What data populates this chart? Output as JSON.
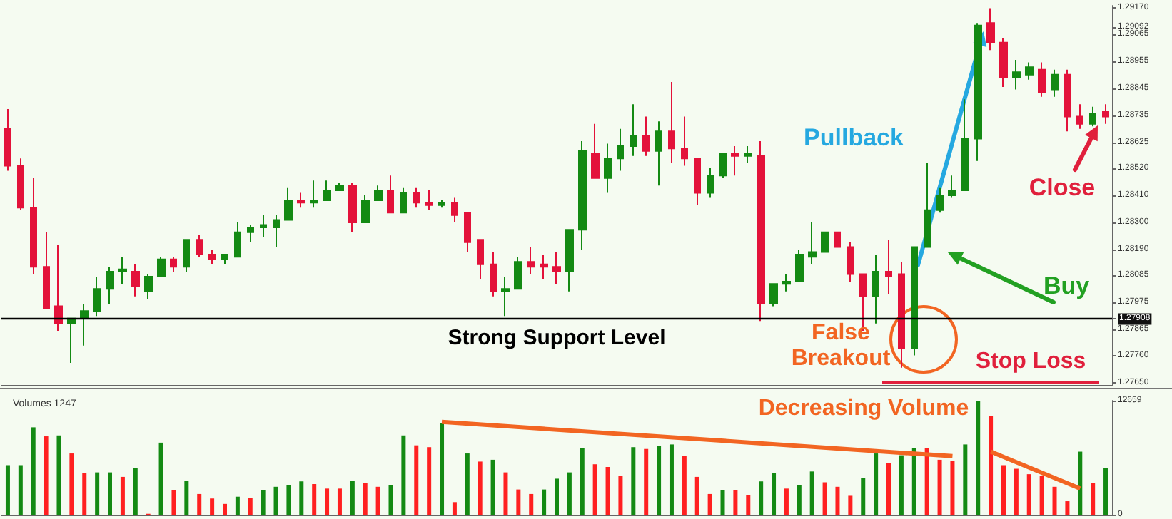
{
  "chart_data": [
    {
      "type": "candlestick",
      "categories": [
        null,
        null,
        null,
        null,
        null,
        null,
        null,
        null,
        null,
        null,
        null,
        null,
        null,
        null,
        null,
        null,
        null,
        null,
        null,
        null,
        null,
        null,
        null,
        null,
        null,
        null,
        null,
        null,
        null,
        null,
        null,
        null,
        null,
        null,
        null,
        null,
        null,
        null,
        null,
        null,
        null,
        null,
        null,
        null,
        null,
        null,
        null,
        null,
        null,
        null,
        null,
        null,
        null,
        null,
        null,
        null,
        null,
        null,
        null,
        null,
        null,
        null,
        null,
        null,
        null,
        null,
        null,
        null,
        null,
        null,
        null,
        null,
        null,
        null,
        null,
        null,
        null,
        null,
        null,
        null,
        null,
        null,
        null,
        null,
        null,
        null,
        null
      ],
      "ohlc": [
        [
          1.2868,
          1.2876,
          1.2851,
          1.2853
        ],
        [
          1.2853,
          1.2856,
          1.2835,
          1.2836
        ],
        [
          1.2836,
          1.2848,
          1.2809,
          1.2812
        ],
        [
          1.2812,
          1.2826,
          1.2795,
          1.2795
        ],
        [
          1.2796,
          1.2821,
          1.2786,
          1.2789
        ],
        [
          1.2789,
          1.2791,
          1.2773,
          1.2791
        ],
        [
          1.2791,
          1.2797,
          1.278,
          1.2794
        ],
        [
          1.2794,
          1.2808,
          1.2792,
          1.2803
        ],
        [
          1.2803,
          1.2812,
          1.2797,
          1.281
        ],
        [
          1.281,
          1.2816,
          1.2805,
          1.2811
        ],
        [
          1.281,
          1.2813,
          1.28,
          1.2804
        ],
        [
          1.2802,
          1.2809,
          1.2799,
          1.2808
        ],
        [
          1.2808,
          1.2816,
          1.2808,
          1.2815
        ],
        [
          1.2815,
          1.2816,
          1.281,
          1.2812
        ],
        [
          1.2812,
          1.2823,
          1.281,
          1.2823
        ],
        [
          1.2823,
          1.2825,
          1.2816,
          1.2817
        ],
        [
          1.2817,
          1.2819,
          1.2813,
          1.2815
        ],
        [
          1.2815,
          1.2817,
          1.2813,
          1.2817
        ],
        [
          1.2816,
          1.283,
          1.2816,
          1.2826
        ],
        [
          1.2826,
          1.2829,
          1.2822,
          1.2828
        ],
        [
          1.2828,
          1.2833,
          1.2824,
          1.2829
        ],
        [
          1.2828,
          1.2833,
          1.282,
          1.2831
        ],
        [
          1.2831,
          1.2844,
          1.2831,
          1.2839
        ],
        [
          1.2839,
          1.2842,
          1.2836,
          1.2838
        ],
        [
          1.2838,
          1.2847,
          1.2836,
          1.2839
        ],
        [
          1.2839,
          1.2847,
          1.2839,
          1.2843
        ],
        [
          1.2843,
          1.2846,
          1.2843,
          1.2845
        ],
        [
          1.2845,
          1.2846,
          1.2826,
          1.283
        ],
        [
          1.283,
          1.2841,
          1.283,
          1.2839
        ],
        [
          1.2839,
          1.2845,
          1.2839,
          1.2843
        ],
        [
          1.2843,
          1.2849,
          1.2834,
          1.2834
        ],
        [
          1.2834,
          1.2844,
          1.2834,
          1.2842
        ],
        [
          1.2842,
          1.2844,
          1.2836,
          1.2838
        ],
        [
          1.2838,
          1.2843,
          1.2835,
          1.2837
        ],
        [
          1.2837,
          1.2839,
          1.2836,
          1.2838
        ],
        [
          1.2838,
          1.284,
          1.283,
          1.2833
        ],
        [
          1.2834,
          1.2834,
          1.2818,
          1.2822
        ],
        [
          1.2823,
          1.2823,
          1.2807,
          1.2813
        ],
        [
          1.2813,
          1.2818,
          1.28,
          1.2802
        ],
        [
          1.2802,
          1.2808,
          1.2792,
          1.2803
        ],
        [
          1.2803,
          1.2816,
          1.2803,
          1.2814
        ],
        [
          1.2814,
          1.282,
          1.2809,
          1.2812
        ],
        [
          1.2813,
          1.2817,
          1.2807,
          1.2812
        ],
        [
          1.2812,
          1.2818,
          1.2805,
          1.281
        ],
        [
          1.281,
          1.2827,
          1.2802,
          1.2827
        ],
        [
          1.2827,
          1.2863,
          1.2819,
          1.2859
        ],
        [
          1.2858,
          1.287,
          1.2848,
          1.2848
        ],
        [
          1.2848,
          1.2862,
          1.2842,
          1.2856
        ],
        [
          1.2856,
          1.2868,
          1.2851,
          1.2861
        ],
        [
          1.2861,
          1.2878,
          1.2857,
          1.2865
        ],
        [
          1.2865,
          1.2873,
          1.2857,
          1.2859
        ],
        [
          1.2859,
          1.2871,
          1.2845,
          1.2867
        ],
        [
          1.2867,
          1.2887,
          1.2854,
          1.286
        ],
        [
          1.286,
          1.2873,
          1.2853,
          1.2856
        ],
        [
          1.2856,
          1.2856,
          1.2837,
          1.2842
        ],
        [
          1.2842,
          1.2852,
          1.284,
          1.2849
        ],
        [
          1.2849,
          1.2858,
          1.2848,
          1.2858
        ],
        [
          1.2858,
          1.2861,
          1.2849,
          1.2857
        ],
        [
          1.2857,
          1.2861,
          1.2854,
          1.2858
        ],
        [
          1.2857,
          1.2863,
          1.279,
          1.2797
        ],
        [
          1.2797,
          1.2805,
          1.2796,
          1.2805
        ],
        [
          1.2805,
          1.2809,
          1.2802,
          1.2806
        ],
        [
          1.2806,
          1.2819,
          1.2806,
          1.2817
        ],
        [
          1.2816,
          1.283,
          1.2813,
          1.2818
        ],
        [
          1.2818,
          1.2826,
          1.2818,
          1.2826
        ],
        [
          1.2826,
          1.2826,
          1.282,
          1.282
        ],
        [
          1.282,
          1.2822,
          1.2806,
          1.2809
        ],
        [
          1.2809,
          1.2809,
          1.2786,
          1.28
        ],
        [
          1.28,
          1.2817,
          1.2789,
          1.281
        ],
        [
          1.281,
          1.2823,
          1.2801,
          1.2808
        ],
        [
          1.2809,
          1.2814,
          1.2771,
          1.2779
        ],
        [
          1.2779,
          1.282,
          1.2776,
          1.282
        ],
        [
          1.282,
          1.2854,
          1.282,
          1.2835
        ],
        [
          1.2835,
          1.2844,
          1.2834,
          1.2841
        ],
        [
          1.2841,
          1.2849,
          1.284,
          1.2843
        ],
        [
          1.2843,
          1.288,
          1.2843,
          1.2864
        ],
        [
          1.2864,
          1.2911,
          1.2855,
          1.291
        ],
        [
          1.2911,
          1.2917,
          1.29,
          1.2903
        ],
        [
          1.2903,
          1.2905,
          1.2885,
          1.2889
        ],
        [
          1.2889,
          1.2896,
          1.2884,
          1.2891
        ],
        [
          1.289,
          1.2895,
          1.2888,
          1.2893
        ],
        [
          1.2892,
          1.2895,
          1.2881,
          1.2883
        ],
        [
          1.2884,
          1.2892,
          1.2881,
          1.289
        ],
        [
          1.289,
          1.2892,
          1.2867,
          1.2873
        ],
        [
          1.2873,
          1.2878,
          1.2868,
          1.287
        ],
        [
          1.287,
          1.2877,
          1.2869,
          1.2874
        ],
        [
          1.2875,
          1.2878,
          1.287,
          1.2873
        ]
      ],
      "ylim": [
        1.2764,
        1.2918
      ],
      "yticks": [
        {
          "value": 1.2917,
          "label": "1.29170"
        },
        {
          "value": 1.29092,
          "label": "1.29092"
        },
        {
          "value": 1.29065,
          "label": "1.29065"
        },
        {
          "value": 1.28955,
          "label": "1.28955"
        },
        {
          "value": 1.28845,
          "label": "1.28845"
        },
        {
          "value": 1.28735,
          "label": "1.28735"
        },
        {
          "value": 1.28625,
          "label": "1.28625"
        },
        {
          "value": 1.2852,
          "label": "1.28520"
        },
        {
          "value": 1.2841,
          "label": "1.28410"
        },
        {
          "value": 1.283,
          "label": "1.28300"
        },
        {
          "value": 1.2819,
          "label": "1.28190"
        },
        {
          "value": 1.28085,
          "label": "1.28085"
        },
        {
          "value": 1.27975,
          "label": "1.27975"
        },
        {
          "value": 1.27908,
          "label": "1.27908"
        },
        {
          "value": 1.27865,
          "label": "1.27865"
        },
        {
          "value": 1.2776,
          "label": "1.27760"
        },
        {
          "value": 1.2765,
          "label": "1.27650"
        }
      ],
      "ref_lines": [
        {
          "axis": "y",
          "value": 1.27908,
          "label": "Strong Support Level",
          "color": "#000000"
        }
      ],
      "annotations": [
        "Pullback",
        "Buy",
        "Close",
        "False Breakout",
        "Stop Loss"
      ],
      "tick_labels": "y",
      "grid": false
    },
    {
      "type": "bar",
      "title": "Volumes 1247",
      "categories": [
        null,
        null,
        null,
        null,
        null,
        null,
        null,
        null,
        null,
        null,
        null,
        null,
        null,
        null,
        null,
        null,
        null,
        null,
        null,
        null,
        null,
        null,
        null,
        null,
        null,
        null,
        null,
        null,
        null,
        null,
        null,
        null,
        null,
        null,
        null,
        null,
        null,
        null,
        null,
        null,
        null,
        null,
        null,
        null,
        null,
        null,
        null,
        null,
        null,
        null,
        null,
        null,
        null,
        null,
        null,
        null,
        null,
        null,
        null,
        null,
        null,
        null,
        null,
        null,
        null,
        null,
        null,
        null,
        null,
        null,
        null,
        null,
        null,
        null,
        null,
        null,
        null,
        null,
        null,
        null,
        null,
        null,
        null,
        null,
        null,
        null,
        null
      ],
      "series": [
        {
          "values": [
            5500,
            5500,
            9700,
            8700,
            8800,
            6800,
            4600,
            4700,
            4700,
            4200,
            5200,
            100,
            8000,
            2700,
            3800,
            2300,
            1800,
            1200,
            2000,
            1900,
            2700,
            3100,
            3300,
            3700,
            3400,
            2900,
            2900,
            3800,
            3500,
            3100,
            3300,
            8800,
            7700,
            7500,
            10200,
            1400,
            6800,
            5900,
            6100,
            4700,
            2800,
            2300,
            2800,
            4000,
            4700,
            7400,
            5600,
            5300,
            4300,
            7500,
            7300,
            7600,
            7800,
            6500,
            4200,
            2300,
            2700,
            2700,
            2200,
            3700,
            4600,
            2900,
            3300,
            4800,
            3600,
            3100,
            2100,
            4100,
            6800,
            5700,
            6600,
            7400,
            7400,
            6100,
            6000,
            7800,
            12659,
            11000,
            5500,
            5100,
            4500,
            4300,
            3100,
            1500,
            7000,
            3500,
            5200
          ],
          "colors": [
            "#138a13",
            "#138a13",
            "#138a13",
            "#ff2020",
            "#138a13",
            "#ff2020",
            "#ff2020",
            "#138a13",
            "#138a13",
            "#ff2020",
            "#138a13",
            "#ff2020",
            "#138a13",
            "#ff2020",
            "#138a13",
            "#ff2020",
            "#ff2020",
            "#ff2020",
            "#138a13",
            "#ff2020",
            "#138a13",
            "#138a13",
            "#138a13",
            "#138a13",
            "#ff2020",
            "#ff2020",
            "#ff2020",
            "#138a13",
            "#ff2020",
            "#ff2020",
            "#138a13",
            "#138a13",
            "#ff2020",
            "#ff2020",
            "#138a13",
            "#ff2020",
            "#138a13",
            "#ff2020",
            "#138a13",
            "#ff2020",
            "#ff2020",
            "#ff2020",
            "#138a13",
            "#138a13",
            "#138a13",
            "#138a13",
            "#ff2020",
            "#ff2020",
            "#ff2020",
            "#138a13",
            "#ff2020",
            "#138a13",
            "#138a13",
            "#ff2020",
            "#ff2020",
            "#ff2020",
            "#138a13",
            "#ff2020",
            "#ff2020",
            "#138a13",
            "#138a13",
            "#ff2020",
            "#138a13",
            "#138a13",
            "#ff2020",
            "#ff2020",
            "#ff2020",
            "#138a13",
            "#138a13",
            "#ff2020",
            "#138a13",
            "#138a13",
            "#ff2020",
            "#ff2020",
            "#ff2020",
            "#138a13",
            "#138a13",
            "#ff2020",
            "#ff2020",
            "#ff2020",
            "#ff2020",
            "#ff2020",
            "#ff2020",
            "#ff2020",
            "#138a13",
            "#ff2020",
            "#138a13"
          ]
        },
        {
          "type": "line",
          "color": "#f26522",
          "values": [
            null,
            null,
            null,
            null,
            null,
            null,
            null,
            null,
            null,
            null,
            null,
            null,
            null,
            null,
            null,
            null,
            null,
            null,
            null,
            null,
            null,
            null,
            null,
            null,
            null,
            null,
            null,
            null,
            null,
            null,
            null,
            null,
            null,
            null,
            10300,
            null,
            null,
            null,
            null,
            null,
            null,
            null,
            null,
            null,
            null,
            null,
            null,
            null,
            null,
            null,
            null,
            null,
            null,
            null,
            null,
            null,
            null,
            null,
            null,
            null,
            null,
            null,
            null,
            null,
            null,
            null,
            null,
            null,
            null,
            null,
            null,
            null,
            null,
            null,
            6500,
            null,
            null,
            null,
            null,
            null,
            null,
            null,
            null,
            null,
            null,
            null,
            null
          ]
        },
        {
          "type": "line",
          "color": "#f26522",
          "values": [
            null,
            null,
            null,
            null,
            null,
            null,
            null,
            null,
            null,
            null,
            null,
            null,
            null,
            null,
            null,
            null,
            null,
            null,
            null,
            null,
            null,
            null,
            null,
            null,
            null,
            null,
            null,
            null,
            null,
            null,
            null,
            null,
            null,
            null,
            null,
            null,
            null,
            null,
            null,
            null,
            null,
            null,
            null,
            null,
            null,
            null,
            null,
            null,
            null,
            null,
            null,
            null,
            null,
            null,
            null,
            null,
            null,
            null,
            null,
            null,
            null,
            null,
            null,
            null,
            null,
            null,
            null,
            null,
            null,
            null,
            null,
            null,
            null,
            null,
            null,
            null,
            null,
            7000,
            null,
            null,
            null,
            null,
            null,
            null,
            2900,
            null,
            null
          ]
        }
      ],
      "ylim": [
        0,
        12659
      ],
      "yticks": [
        0,
        12659
      ],
      "annotations": [
        "Decreasing Volume"
      ],
      "tick_labels": "y",
      "grid": false
    }
  ]
}
